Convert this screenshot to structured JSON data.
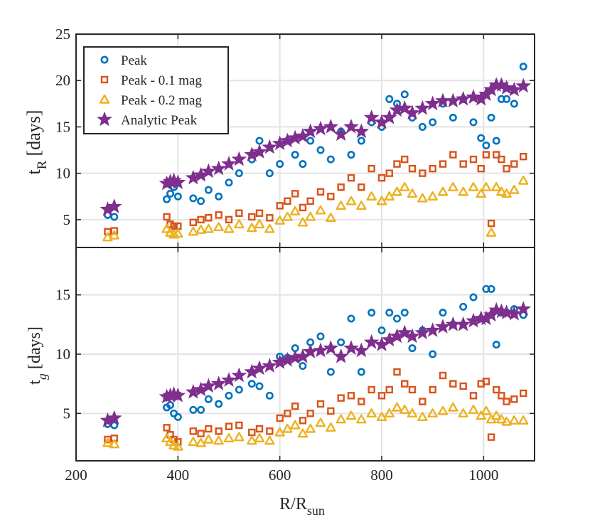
{
  "chart_data": {
    "type": "scatter",
    "xlabel": "R/R",
    "xlabel_sub": "sun",
    "xlim": [
      200,
      1100
    ],
    "xticks": [
      200,
      400,
      600,
      800,
      1000
    ],
    "grid": true,
    "legend_position": "top-left",
    "series_styles": [
      {
        "name": "Peak",
        "marker": "circle",
        "color": "#0072BD"
      },
      {
        "name": "Peak - 0.1 mag",
        "marker": "square",
        "color": "#D95319"
      },
      {
        "name": "Peak - 0.2 mag",
        "marker": "triangle",
        "color": "#EDB120"
      },
      {
        "name": "Analytic Peak",
        "marker": "star",
        "color": "#7E2F8E"
      }
    ],
    "panels": [
      {
        "id": "top",
        "ylabel": "t",
        "ylabel_sub": "R",
        "ylabel_unit": "[days]",
        "ylim": [
          2,
          25
        ],
        "yticks": [
          5,
          10,
          15,
          20,
          25
        ],
        "x": [
          262,
          275,
          378,
          385,
          392,
          400,
          430,
          445,
          460,
          480,
          500,
          520,
          545,
          560,
          580,
          600,
          615,
          630,
          645,
          660,
          680,
          700,
          720,
          740,
          760,
          780,
          800,
          815,
          830,
          845,
          860,
          880,
          900,
          920,
          940,
          960,
          980,
          995,
          1005,
          1015,
          1025,
          1035,
          1045,
          1060,
          1078
        ],
        "series": [
          {
            "name": "Peak",
            "values": [
              5.5,
              5.3,
              7.2,
              7.8,
              8.5,
              7.5,
              7.3,
              7.0,
              8.2,
              7.5,
              9.0,
              10.0,
              11.5,
              13.5,
              10.0,
              11.0,
              13.5,
              12.0,
              11.0,
              13.5,
              12.5,
              11.5,
              14.5,
              12.0,
              13.5,
              15.5,
              15.0,
              18.0,
              17.5,
              18.5,
              16.0,
              15.0,
              15.5,
              17.5,
              16.0,
              18.0,
              15.5,
              13.8,
              13.0,
              16.0,
              13.5,
              18.0,
              18.0,
              17.5,
              21.5
            ]
          },
          {
            "name": "Peak - 0.1 mag",
            "values": [
              3.7,
              3.8,
              5.3,
              4.5,
              4.3,
              4.3,
              4.7,
              5.0,
              5.2,
              5.5,
              5.0,
              5.7,
              5.3,
              5.7,
              5.2,
              6.5,
              7.0,
              7.8,
              6.3,
              7.0,
              8.0,
              7.5,
              8.5,
              9.5,
              8.5,
              10.5,
              9.5,
              10.0,
              11.0,
              11.5,
              10.5,
              10.0,
              10.5,
              11.0,
              12.0,
              11.0,
              11.5,
              10.5,
              12.0,
              4.6,
              12.0,
              11.5,
              10.5,
              11.0,
              11.8
            ]
          },
          {
            "name": "Peak - 0.2 mag",
            "values": [
              3.1,
              3.3,
              4.0,
              3.6,
              3.4,
              3.5,
              3.7,
              3.9,
              4.0,
              4.2,
              4.0,
              4.5,
              4.1,
              4.5,
              4.0,
              4.9,
              5.3,
              5.9,
              4.7,
              5.3,
              6.0,
              5.2,
              6.5,
              7.0,
              6.5,
              7.5,
              7.0,
              7.5,
              8.0,
              8.5,
              7.8,
              7.3,
              7.5,
              8.0,
              8.5,
              8.0,
              8.5,
              7.8,
              8.5,
              3.6,
              8.5,
              8.0,
              7.8,
              8.2,
              9.2
            ]
          },
          {
            "name": "Analytic Peak",
            "values": [
              6.1,
              6.4,
              8.9,
              9.1,
              9.2,
              9.0,
              9.5,
              9.8,
              10.2,
              10.5,
              11.0,
              11.5,
              12.0,
              12.3,
              12.8,
              13.2,
              13.5,
              13.8,
              14.0,
              14.5,
              14.8,
              15.0,
              14.2,
              15.0,
              14.5,
              16.0,
              15.5,
              16.0,
              16.8,
              17.0,
              16.5,
              17.0,
              17.5,
              17.8,
              17.8,
              18.0,
              18.2,
              18.0,
              18.5,
              19.0,
              19.5,
              19.5,
              19.2,
              19.0,
              19.4
            ]
          }
        ]
      },
      {
        "id": "bottom",
        "ylabel": "t",
        "ylabel_sub": "g",
        "ylabel_unit": "[days]",
        "ylim": [
          1,
          19
        ],
        "yticks": [
          5,
          10,
          15
        ],
        "x": [
          262,
          275,
          378,
          385,
          392,
          400,
          430,
          445,
          460,
          480,
          500,
          520,
          545,
          560,
          580,
          600,
          615,
          630,
          645,
          660,
          680,
          700,
          720,
          740,
          760,
          780,
          800,
          815,
          830,
          845,
          860,
          880,
          900,
          920,
          940,
          960,
          980,
          995,
          1005,
          1015,
          1025,
          1035,
          1045,
          1060,
          1078
        ],
        "series": [
          {
            "name": "Peak",
            "values": [
              4.1,
              4.0,
              5.5,
              5.7,
              5.0,
              4.7,
              5.3,
              5.3,
              6.2,
              5.8,
              6.5,
              7.0,
              7.5,
              7.3,
              6.5,
              9.8,
              9.7,
              10.5,
              9.0,
              11.0,
              11.5,
              8.5,
              11.0,
              13.0,
              8.5,
              13.5,
              12.0,
              13.5,
              13.0,
              13.5,
              10.5,
              12.0,
              10.0,
              13.5,
              12.5,
              14.0,
              14.8,
              13.0,
              15.5,
              15.5,
              10.8,
              13.5,
              13.5,
              13.8,
              13.3
            ]
          },
          {
            "name": "Peak - 0.1 mag",
            "values": [
              2.8,
              2.9,
              3.8,
              3.2,
              2.8,
              2.6,
              3.5,
              3.3,
              3.7,
              3.5,
              3.9,
              4.0,
              3.4,
              3.7,
              3.5,
              4.6,
              5.0,
              5.6,
              4.4,
              5.0,
              5.8,
              5.2,
              6.3,
              6.5,
              6.0,
              7.0,
              6.5,
              7.0,
              8.5,
              7.5,
              7.0,
              6.0,
              7.0,
              8.2,
              7.5,
              7.3,
              6.5,
              7.5,
              7.7,
              3.0,
              7.0,
              6.5,
              6.0,
              6.2,
              6.7
            ]
          },
          {
            "name": "Peak - 0.2 mag",
            "values": [
              2.5,
              2.4,
              2.9,
              2.6,
              2.3,
              2.2,
              2.6,
              2.5,
              2.8,
              2.7,
              2.9,
              3.0,
              2.7,
              2.9,
              2.7,
              3.4,
              3.7,
              4.0,
              3.3,
              3.7,
              4.2,
              3.8,
              4.5,
              4.8,
              4.5,
              5.0,
              4.7,
              5.0,
              5.5,
              5.3,
              5.0,
              4.7,
              5.0,
              5.2,
              5.5,
              5.0,
              5.3,
              4.8,
              5.2,
              4.5,
              4.8,
              4.5,
              4.3,
              4.4,
              4.4
            ]
          },
          {
            "name": "Analytic Peak",
            "values": [
              4.4,
              4.6,
              6.4,
              6.5,
              6.6,
              6.5,
              6.8,
              7.0,
              7.3,
              7.5,
              7.8,
              8.2,
              8.5,
              8.8,
              9.0,
              9.3,
              9.5,
              9.7,
              9.8,
              10.2,
              10.3,
              10.5,
              9.8,
              10.5,
              10.3,
              11.0,
              10.8,
              11.2,
              11.5,
              11.8,
              11.5,
              11.8,
              12.0,
              12.3,
              12.5,
              12.5,
              12.8,
              13.0,
              13.0,
              13.3,
              13.7,
              13.6,
              13.5,
              13.4,
              13.8
            ]
          }
        ]
      }
    ]
  }
}
